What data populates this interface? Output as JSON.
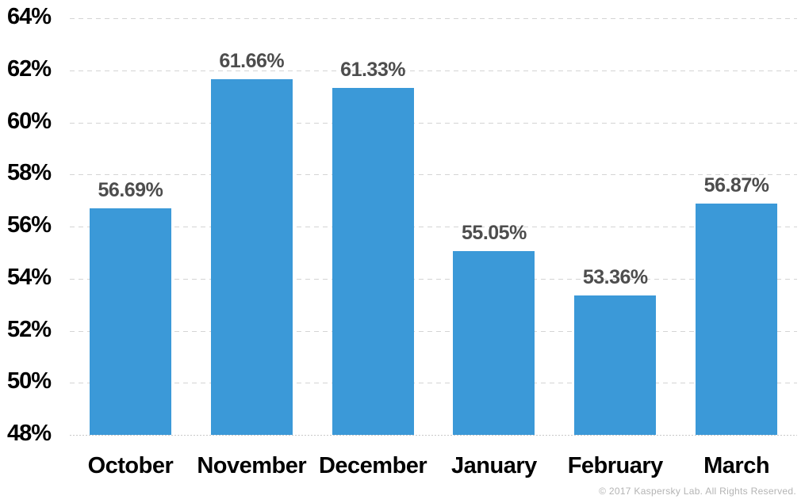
{
  "chart_data": {
    "type": "bar",
    "categories": [
      "October",
      "November",
      "December",
      "January",
      "February",
      "March"
    ],
    "values": [
      56.69,
      61.66,
      61.33,
      55.05,
      53.36,
      56.87
    ],
    "value_labels": [
      "56.69%",
      "61.66%",
      "61.33%",
      "55.05%",
      "53.36%",
      "56.87%"
    ],
    "title": "",
    "xlabel": "",
    "ylabel": "",
    "ylim": [
      48,
      64
    ],
    "ytick_step": 2,
    "ytick_labels": [
      "48%",
      "50%",
      "52%",
      "54%",
      "56%",
      "58%",
      "60%",
      "62%",
      "64%"
    ],
    "grid": true,
    "legend": false,
    "bar_color": "#3B99D8",
    "value_label_color": "#4d4d4d",
    "axis_label_color": "#000000",
    "gridline_color": "#d4d4d4"
  },
  "footer": {
    "copyright": "© 2017 Kaspersky Lab. All Rights Reserved."
  }
}
